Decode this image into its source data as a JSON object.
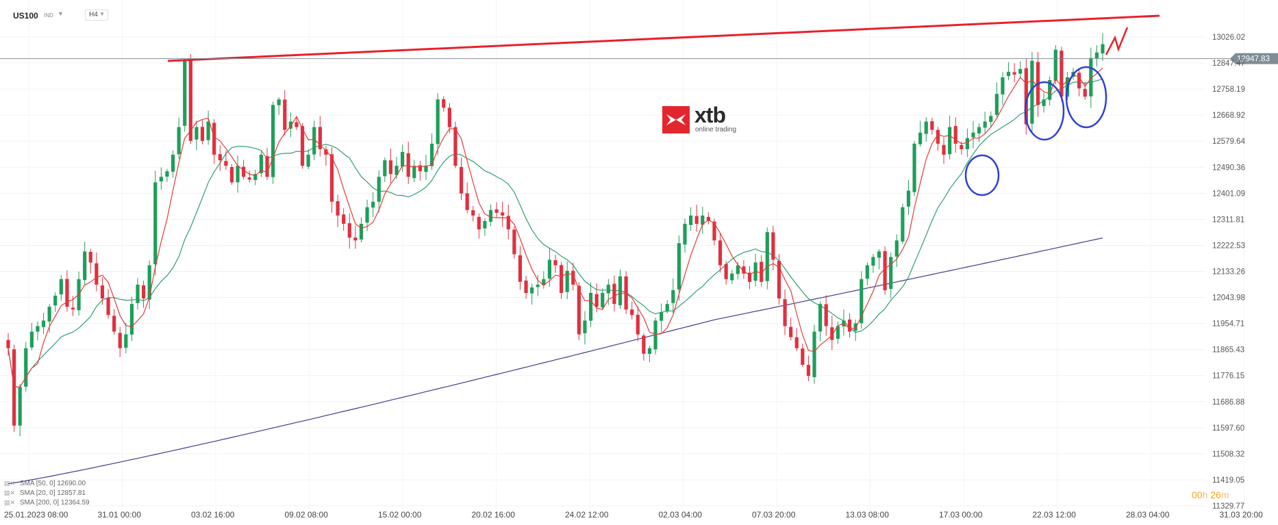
{
  "header": {
    "symbol": "US100",
    "market": "IND",
    "timeframe": "H4"
  },
  "logo": {
    "brand": "xtb",
    "tagline": "online trading"
  },
  "legend": [
    {
      "label": "SMA [50, 0]",
      "value": "12690.00"
    },
    {
      "label": "SMA [20, 0]",
      "value": "12857.81"
    },
    {
      "label": "SMA [200, 0]",
      "value": "12364.59"
    }
  ],
  "timer": {
    "hours": "00",
    "h": "h",
    "minutes": "26",
    "m": "m"
  },
  "colors": {
    "up_candle": "#1e9e5a",
    "down_candle": "#e03040",
    "sma20": "#e53935",
    "sma50": "#2e9e6a",
    "sma200": "#3a3a8f",
    "resistance": "#e8202a",
    "circles": "#2b3fd6",
    "price_tag": "#7f8c96"
  },
  "chart_data": {
    "type": "candlestick",
    "instrument": "US100",
    "interval": "H4",
    "y_ticks": [
      "13026.02",
      "12847.47",
      "12758.19",
      "12668.92",
      "12579.64",
      "12490.36",
      "12401.09",
      "12311.81",
      "12222.53",
      "12133.26",
      "12043.98",
      "11954.71",
      "11865.43",
      "11776.15",
      "11686.88",
      "11597.60",
      "11508.32",
      "11419.05",
      "11329.77"
    ],
    "x_ticks": [
      "25.01.2023  08:00",
      "31.01  00:00",
      "03.02  16:00",
      "09.02  08:00",
      "15.02  00:00",
      "20.02  16:00",
      "24.02  12:00",
      "02.03  04:00",
      "07.03  20:00",
      "13.03  08:00",
      "17.03  00:00",
      "22.03  12:00",
      "28.03  04:00",
      "31.03  20:00"
    ],
    "current_price": "12947.83",
    "ylim": [
      11329.77,
      13026.02
    ],
    "closes": [
      11900,
      11620,
      11760,
      11900,
      11960,
      11980,
      12000,
      12050,
      12090,
      12150,
      12050,
      12040,
      12150,
      12250,
      12210,
      12130,
      12080,
      12020,
      11960,
      11900,
      11950,
      12060,
      12130,
      12080,
      12200,
      12500,
      12520,
      12540,
      12600,
      12700,
      12940,
      12650,
      12700,
      12650,
      12720,
      12600,
      12580,
      12560,
      12500,
      12560,
      12520,
      12510,
      12530,
      12600,
      12520,
      12780,
      12800,
      12690,
      12720,
      12700,
      12560,
      12600,
      12700,
      12620,
      12600,
      12430,
      12380,
      12350,
      12300,
      12290,
      12350,
      12410,
      12430,
      12520,
      12580,
      12530,
      12560,
      12610,
      12520,
      12560,
      12540,
      12560,
      12640,
      12800,
      12770,
      12700,
      12560,
      12460,
      12400,
      12380,
      12330,
      12360,
      12400,
      12390,
      12380,
      12330,
      12240,
      12140,
      12100,
      12120,
      12130,
      12150,
      12220,
      12200,
      12100,
      12180,
      12130,
      11950,
      12000,
      12100,
      12050,
      12100,
      12130,
      12060,
      12160,
      12040,
      12020,
      11950,
      11880,
      11900,
      12000,
      12030,
      12060,
      12110,
      12280,
      12350,
      12380,
      12350,
      12380,
      12360,
      12290,
      12200,
      12150,
      12170,
      12200,
      12170,
      12140,
      12210,
      12140,
      12320,
      12220,
      12080,
      11980,
      11940,
      11900,
      11840,
      11800,
      11960,
      12060,
      11980,
      11930,
      11980,
      12000,
      11960,
      11990,
      12150,
      12200,
      12230,
      12250,
      12110,
      12230,
      12290,
      12410,
      12470,
      12640,
      12680,
      12720,
      12690,
      12640,
      12600,
      12700,
      12640,
      12620,
      12660,
      12680,
      12700,
      12720,
      12740,
      12820,
      12880,
      12900,
      12890,
      12910,
      12710,
      12940,
      12780,
      12800,
      12870,
      12980,
      12810,
      12880,
      12900,
      12840,
      12810,
      12950,
      12970,
      13000
    ]
  }
}
